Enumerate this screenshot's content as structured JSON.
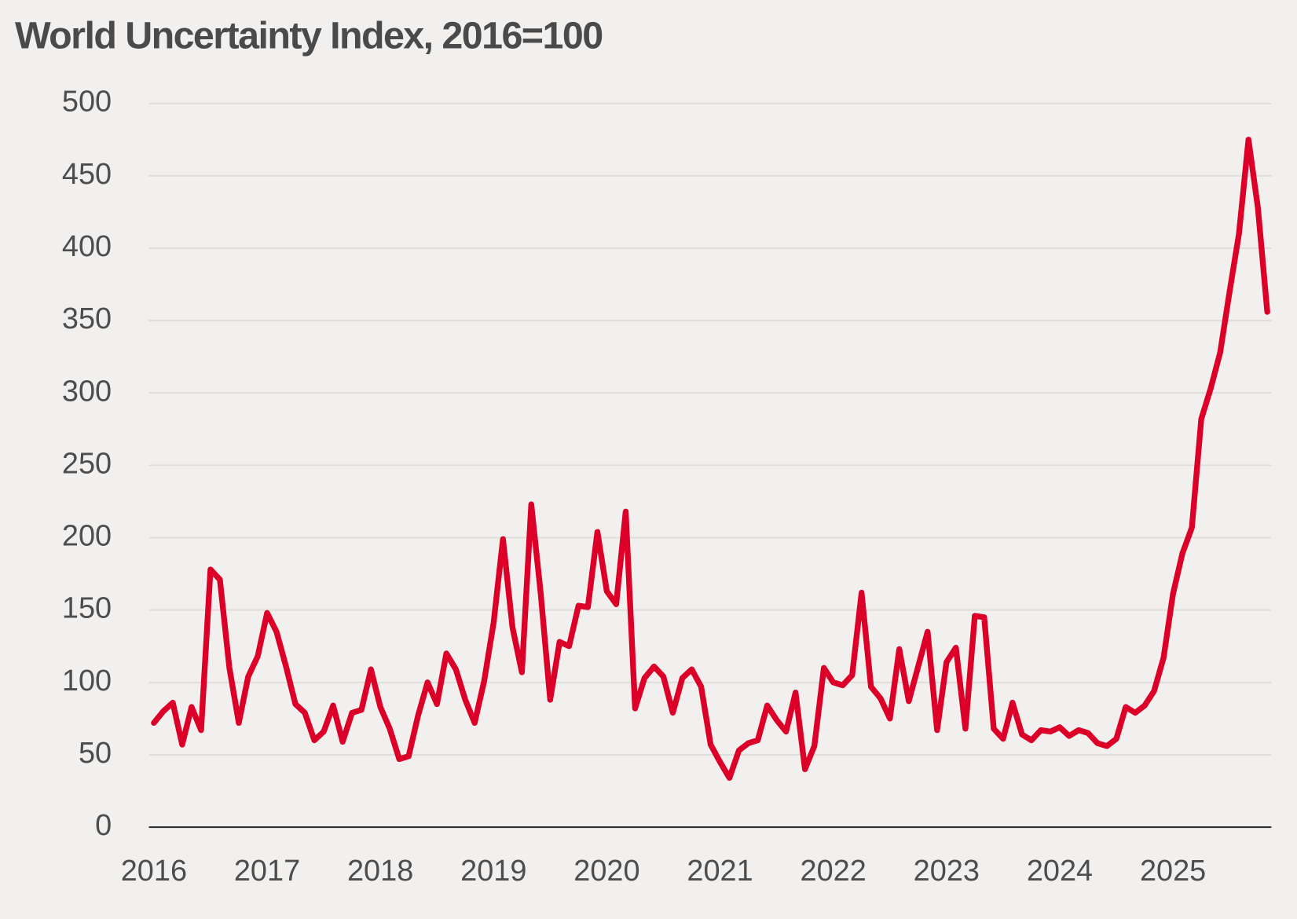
{
  "chart_data": {
    "type": "line",
    "title": "World Uncertainty Index, 2016=100",
    "x": [
      2016,
      2016.083,
      2016.167,
      2016.25,
      2016.333,
      2016.417,
      2016.5,
      2016.583,
      2016.667,
      2016.75,
      2016.833,
      2016.917,
      2017,
      2017.083,
      2017.167,
      2017.25,
      2017.333,
      2017.417,
      2017.5,
      2017.583,
      2017.667,
      2017.75,
      2017.833,
      2017.917,
      2018,
      2018.083,
      2018.167,
      2018.25,
      2018.333,
      2018.417,
      2018.5,
      2018.583,
      2018.667,
      2018.75,
      2018.833,
      2018.917,
      2019,
      2019.083,
      2019.167,
      2019.25,
      2019.333,
      2019.417,
      2019.5,
      2019.583,
      2019.667,
      2019.75,
      2019.833,
      2019.917,
      2020,
      2020.083,
      2020.167,
      2020.25,
      2020.333,
      2020.417,
      2020.5,
      2020.583,
      2020.667,
      2020.75,
      2020.833,
      2020.917,
      2021,
      2021.083,
      2021.167,
      2021.25,
      2021.333,
      2021.417,
      2021.5,
      2021.583,
      2021.667,
      2021.75,
      2021.833,
      2021.917,
      2022,
      2022.083,
      2022.167,
      2022.25,
      2022.333,
      2022.417,
      2022.5,
      2022.583,
      2022.667,
      2022.75,
      2022.833,
      2022.917,
      2023,
      2023.083,
      2023.167,
      2023.25,
      2023.333,
      2023.417,
      2023.5,
      2023.583,
      2023.667,
      2023.75,
      2023.833,
      2023.917,
      2024,
      2024.083,
      2024.167,
      2024.25,
      2024.333,
      2024.417,
      2024.5,
      2024.583,
      2024.667,
      2024.75,
      2024.833,
      2024.917,
      2025,
      2025.083,
      2025.167,
      2025.25,
      2025.333,
      2025.417,
      2025.5,
      2025.583,
      2025.667,
      2025.75,
      2025.833
    ],
    "series": [
      {
        "color": "#dc0028",
        "values": [
          72,
          80,
          86,
          57,
          83,
          67,
          178,
          171,
          110,
          72,
          104,
          118,
          148,
          135,
          111,
          85,
          79,
          60,
          66,
          84,
          59,
          79,
          81,
          109,
          83,
          68,
          47,
          49,
          77,
          100,
          85,
          120,
          109,
          88,
          72,
          101,
          141,
          199,
          138,
          107,
          223,
          161,
          88,
          128,
          125,
          153,
          152,
          204,
          163,
          154,
          218,
          82,
          103,
          111,
          104,
          79,
          103,
          109,
          97,
          57,
          45,
          34,
          53,
          58,
          60,
          84,
          74,
          66,
          93,
          40,
          56,
          110,
          100,
          98,
          105,
          162,
          97,
          89,
          75,
          123,
          87,
          111,
          135,
          67,
          114,
          124,
          68,
          146,
          145,
          68,
          61,
          86,
          64,
          60,
          67,
          66,
          69,
          63,
          67,
          65,
          58,
          56,
          61,
          83,
          79,
          84,
          94,
          117,
          161,
          189,
          207,
          282,
          303,
          328,
          370,
          410,
          475,
          428,
          356
        ]
      }
    ],
    "xlim": [
      2015.956,
      2025.869
    ],
    "xticks": [
      2016,
      2017,
      2018,
      2019,
      2020,
      2021,
      2022,
      2023,
      2024,
      2025
    ],
    "ylim": [
      0,
      500
    ],
    "yticks": [
      0,
      50,
      100,
      150,
      200,
      250,
      300,
      350,
      400,
      450,
      500
    ],
    "grid": true
  }
}
